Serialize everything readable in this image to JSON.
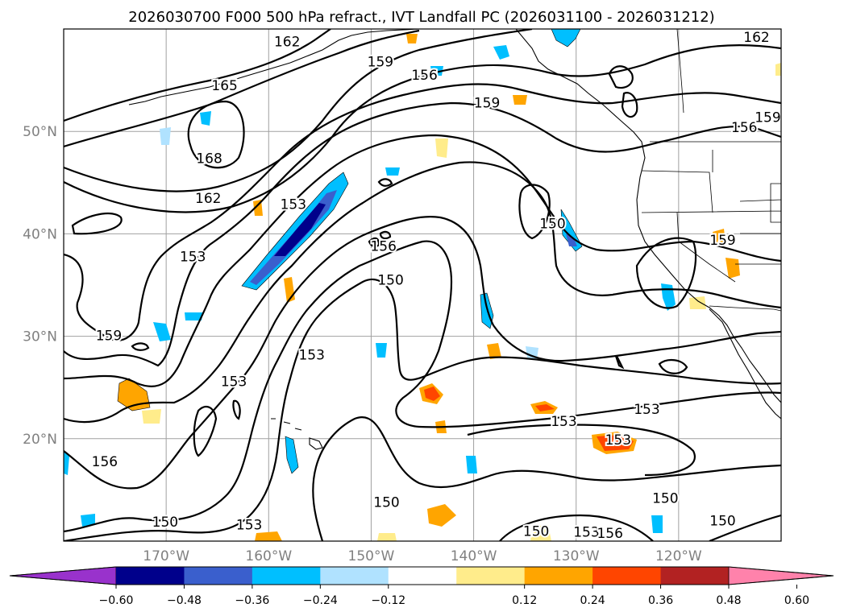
{
  "title": "2026030700 F000 500 hPa refract., IVT Landfall PC (2026031100 - 2026031212)",
  "chart_data": {
    "type": "map-contour",
    "title": "2026030700 F000 500 hPa refract., IVT Landfall PC (2026031100 - 2026031212)",
    "lat_ticks": [
      {
        "value": 50,
        "label": "50°N"
      },
      {
        "value": 40,
        "label": "40°N"
      },
      {
        "value": 30,
        "label": "30°N"
      },
      {
        "value": 20,
        "label": "20°N"
      }
    ],
    "lon_ticks": [
      {
        "value": -170,
        "label": "170°W"
      },
      {
        "value": -160,
        "label": "160°W"
      },
      {
        "value": -150,
        "label": "150°W"
      },
      {
        "value": -140,
        "label": "140°W"
      },
      {
        "value": -130,
        "label": "130°W"
      },
      {
        "value": -120,
        "label": "120°W"
      }
    ],
    "extent": {
      "lon_min": -180,
      "lon_max": -110,
      "lat_min": 10,
      "lat_max": 60
    },
    "grid": true,
    "contour_labels": [
      {
        "text": "162",
        "lon": -158.2,
        "lat": 58.8
      },
      {
        "text": "159",
        "lon": -149.1,
        "lat": 56.8
      },
      {
        "text": "156",
        "lon": -144.8,
        "lat": 55.5
      },
      {
        "text": "165",
        "lon": -164.3,
        "lat": 54.5
      },
      {
        "text": "159",
        "lon": -138.7,
        "lat": 52.8
      },
      {
        "text": "162",
        "lon": -112.4,
        "lat": 59.2
      },
      {
        "text": "156",
        "lon": -113.6,
        "lat": 50.4
      },
      {
        "text": "159",
        "lon": -111.3,
        "lat": 51.4
      },
      {
        "text": "168",
        "lon": -165.8,
        "lat": 47.4
      },
      {
        "text": "162",
        "lon": -165.9,
        "lat": 43.5
      },
      {
        "text": "153",
        "lon": -157.6,
        "lat": 42.9
      },
      {
        "text": "150",
        "lon": -132.3,
        "lat": 41.0
      },
      {
        "text": "159",
        "lon": -115.7,
        "lat": 39.4
      },
      {
        "text": "156",
        "lon": -148.8,
        "lat": 38.8
      },
      {
        "text": "153",
        "lon": -167.4,
        "lat": 37.8
      },
      {
        "text": "150",
        "lon": -148.1,
        "lat": 35.5
      },
      {
        "text": "159",
        "lon": -175.6,
        "lat": 30.1
      },
      {
        "text": "153",
        "lon": -155.8,
        "lat": 28.2
      },
      {
        "text": "153",
        "lon": -163.4,
        "lat": 25.6
      },
      {
        "text": "153",
        "lon": -131.2,
        "lat": 21.7
      },
      {
        "text": "153",
        "lon": -123.1,
        "lat": 22.9
      },
      {
        "text": "153",
        "lon": -125.9,
        "lat": 19.9
      },
      {
        "text": "156",
        "lon": -176.0,
        "lat": 17.8
      },
      {
        "text": "150",
        "lon": -148.5,
        "lat": 13.8
      },
      {
        "text": "150",
        "lon": -121.3,
        "lat": 14.2
      },
      {
        "text": "153",
        "lon": -161.9,
        "lat": 11.6
      },
      {
        "text": "150",
        "lon": -170.1,
        "lat": 11.9
      },
      {
        "text": "150",
        "lon": -133.9,
        "lat": 11.0
      },
      {
        "text": "153",
        "lon": -129.0,
        "lat": 10.9
      },
      {
        "text": "156",
        "lon": -126.7,
        "lat": 10.8
      },
      {
        "text": "150",
        "lon": -115.7,
        "lat": 12.0
      }
    ],
    "colorbar": {
      "ticks": [
        "−0.60",
        "−0.48",
        "−0.36",
        "−0.24",
        "−0.12",
        "0.12",
        "0.24",
        "0.36",
        "0.48",
        "0.60"
      ],
      "colors": [
        "#9932cc",
        "#00008b",
        "#3a5fcd",
        "#00bfff",
        "#b0e2ff",
        "#ffffff",
        "#ffec8b",
        "#ffa500",
        "#ff4500",
        "#b22222",
        "#ff82ab"
      ],
      "extend": "both"
    }
  }
}
